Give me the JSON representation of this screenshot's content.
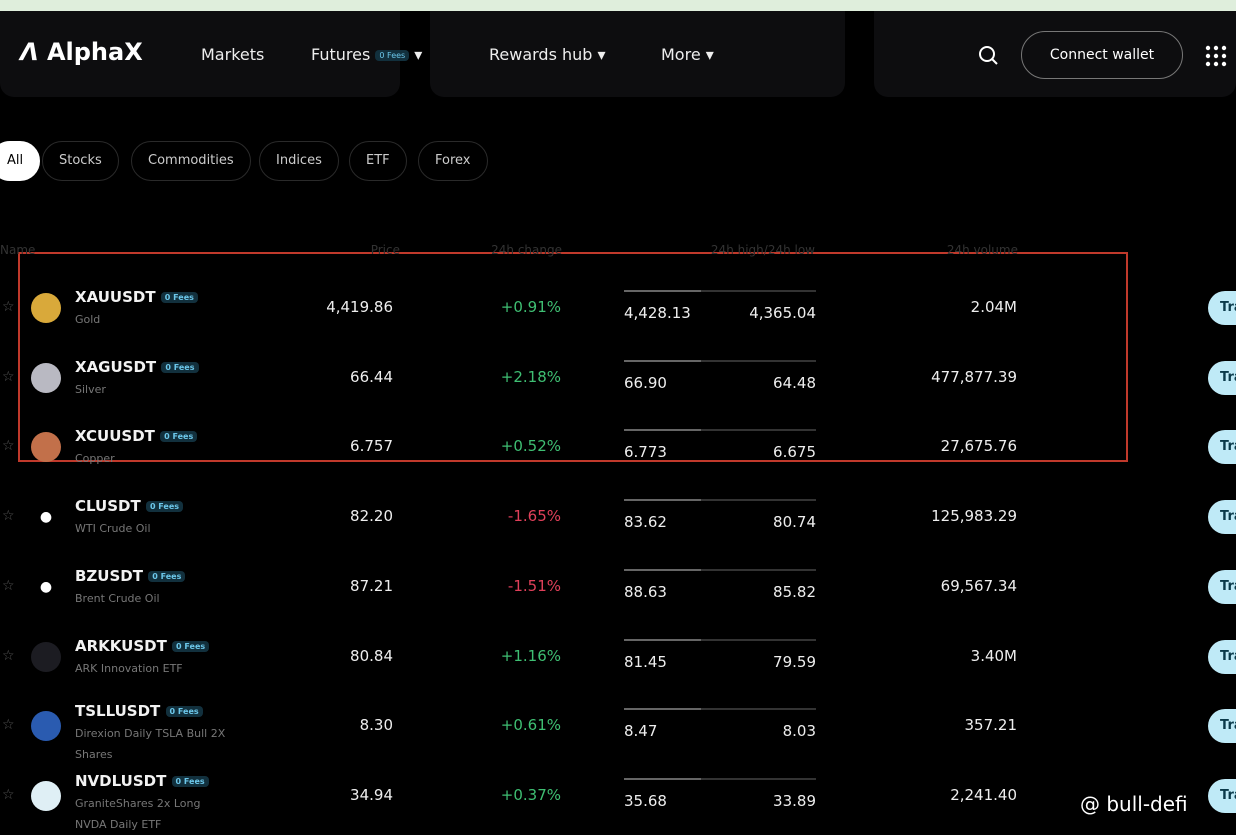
{
  "nav": {
    "logo": "AlphaX",
    "items": [
      "Markets",
      "Futures",
      "Rewards hub",
      "More"
    ],
    "futures_badge": "0 Fees",
    "connect": "Connect wallet"
  },
  "filters": [
    "All",
    "Stocks",
    "Commodities",
    "Indices",
    "ETF",
    "Forex"
  ],
  "table": {
    "headers": [
      "Name",
      "Price",
      "24h change",
      "24h high/24h low",
      "24h volume"
    ],
    "rows": [
      {
        "symbol": "XAUUSDT",
        "badge": "0 Fees",
        "name": "Gold",
        "price": "4,419.86",
        "change": "+0.91%",
        "high": "4,428.13",
        "low": "4,365.04",
        "volume": "2.04M",
        "action": "Trade"
      },
      {
        "symbol": "XAGUSDT",
        "badge": "0 Fees",
        "name": "Silver",
        "price": "66.44",
        "change": "+2.18%",
        "high": "66.90",
        "low": "64.48",
        "volume": "477,877.39",
        "action": "Trade"
      },
      {
        "symbol": "XCUUSDT",
        "badge": "0 Fees",
        "name": "Copper",
        "price": "6.757",
        "change": "+0.52%",
        "high": "6.773",
        "low": "6.675",
        "volume": "27,675.76",
        "action": "Trade"
      },
      {
        "symbol": "CLUSDT",
        "badge": "0 Fees",
        "name": "WTI Crude Oil",
        "price": "82.20",
        "change": "-1.65%",
        "high": "83.62",
        "low": "80.74",
        "volume": "125,983.29",
        "action": "Trade"
      },
      {
        "symbol": "BZUSDT",
        "badge": "0 Fees",
        "name": "Brent Crude Oil",
        "price": "87.21",
        "change": "-1.51%",
        "high": "88.63",
        "low": "85.82",
        "volume": "69,567.34",
        "action": "Trade"
      },
      {
        "symbol": "ARKKUSDT",
        "badge": "0 Fees",
        "name": "ARK Innovation ETF",
        "price": "80.84",
        "change": "+1.16%",
        "high": "81.45",
        "low": "79.59",
        "volume": "3.40M",
        "action": "Trade"
      },
      {
        "symbol": "TSLLUSDT",
        "badge": "0 Fees",
        "name": "Direxion Daily TSLA Bull 2X Shares",
        "price": "8.30",
        "change": "+0.61%",
        "high": "8.47",
        "low": "8.03",
        "volume": "357.21",
        "action": "Trade"
      },
      {
        "symbol": "NVDLUSDT",
        "badge": "0 Fees",
        "name": "GraniteShares 2x Long NVDA Daily ETF",
        "price": "34.94",
        "change": "+0.37%",
        "high": "35.68",
        "low": "33.89",
        "volume": "2,241.40",
        "action": "Trade"
      }
    ]
  },
  "watermark": "@ bull-defi"
}
